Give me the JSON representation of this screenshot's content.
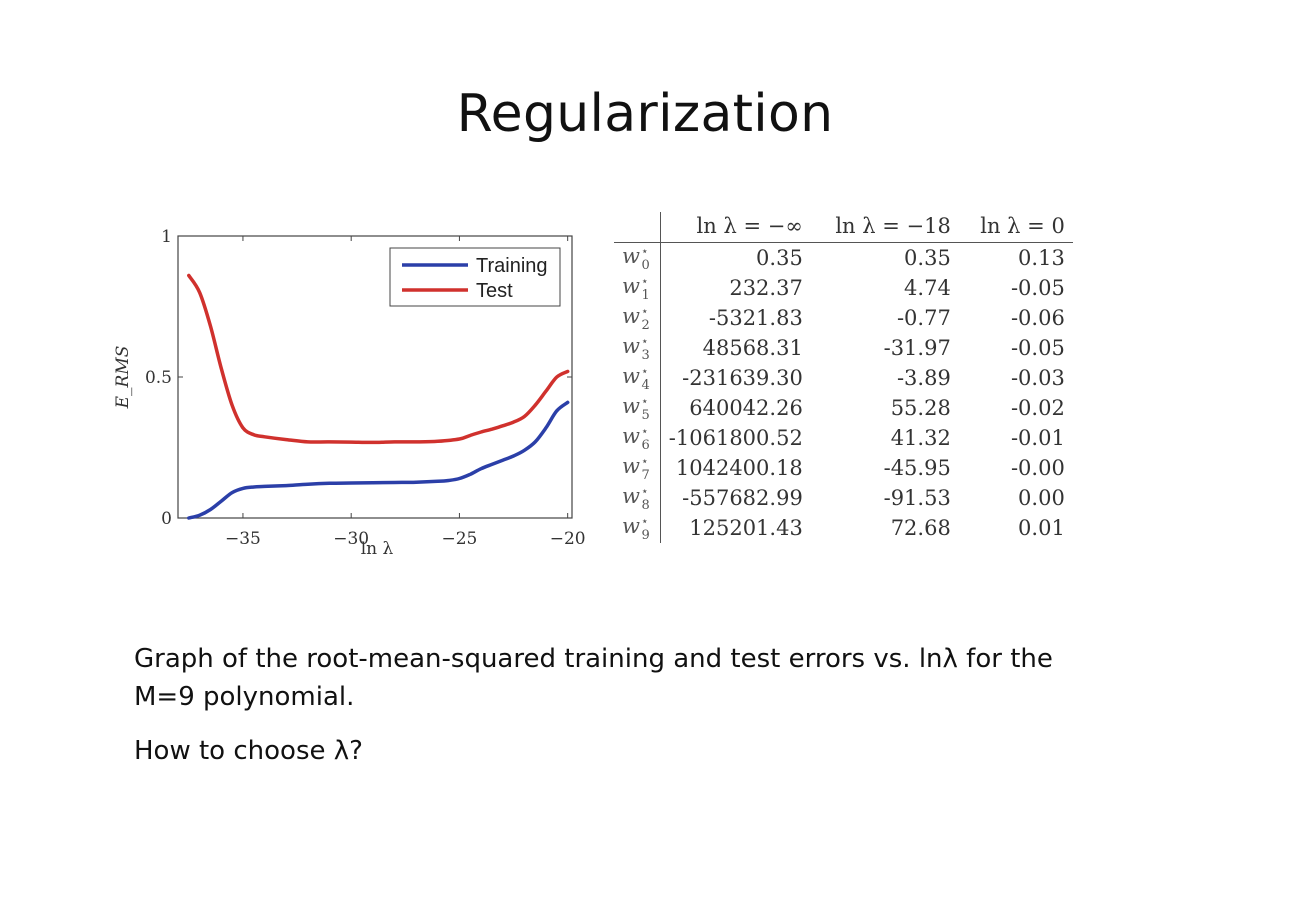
{
  "slide": {
    "title": "Regularization",
    "caption_line1": "Graph of the root-mean-squared training and test errors vs. lnλ for the",
    "caption_line2": "M=9 polynomial.",
    "question": "How to choose λ?"
  },
  "chart_data": {
    "type": "line",
    "xlabel": "ln λ",
    "ylabel": "E_RMS",
    "xlim": [
      -38,
      -19.8
    ],
    "ylim": [
      0,
      1
    ],
    "x_ticks": [
      -35,
      -30,
      -25,
      -20
    ],
    "x_tick_labels": [
      "−35",
      "−30",
      "−25",
      "−20"
    ],
    "y_ticks": [
      0,
      0.5,
      1
    ],
    "y_tick_labels": [
      "0",
      "0.5",
      "1"
    ],
    "grid": false,
    "legend_position": "top-right",
    "series": [
      {
        "name": "Training",
        "color": "#2b3fa8",
        "x": [
          -37.5,
          -37.0,
          -36.5,
          -36.0,
          -35.5,
          -35.0,
          -34.5,
          -34.0,
          -33.0,
          -32.0,
          -31.0,
          -30.0,
          -29.0,
          -28.0,
          -27.0,
          -26.0,
          -25.5,
          -25.0,
          -24.5,
          -24.0,
          -23.5,
          -23.0,
          -22.5,
          -22.0,
          -21.5,
          -21.0,
          -20.5,
          -20.0
        ],
        "y": [
          0.0,
          0.01,
          0.03,
          0.06,
          0.09,
          0.105,
          0.11,
          0.112,
          0.115,
          0.12,
          0.123,
          0.124,
          0.125,
          0.126,
          0.127,
          0.13,
          0.133,
          0.14,
          0.155,
          0.175,
          0.19,
          0.205,
          0.22,
          0.24,
          0.27,
          0.32,
          0.38,
          0.41
        ]
      },
      {
        "name": "Test",
        "color": "#d0312d",
        "x": [
          -37.5,
          -37.0,
          -36.5,
          -36.0,
          -35.5,
          -35.0,
          -34.5,
          -34.0,
          -33.0,
          -32.0,
          -31.0,
          -30.0,
          -29.0,
          -28.0,
          -27.0,
          -26.0,
          -25.0,
          -24.5,
          -24.0,
          -23.5,
          -23.0,
          -22.5,
          -22.0,
          -21.5,
          -21.0,
          -20.5,
          -20.0
        ],
        "y": [
          0.86,
          0.8,
          0.68,
          0.53,
          0.4,
          0.32,
          0.295,
          0.288,
          0.278,
          0.27,
          0.27,
          0.269,
          0.268,
          0.27,
          0.27,
          0.272,
          0.28,
          0.293,
          0.305,
          0.315,
          0.327,
          0.34,
          0.36,
          0.4,
          0.45,
          0.5,
          0.52
        ]
      }
    ]
  },
  "table": {
    "headers": [
      "",
      "ln λ = −∞",
      "ln λ = −18",
      "ln λ = 0"
    ],
    "rows": [
      {
        "w": "w",
        "star": "⋆",
        "sub": "0",
        "v": [
          "0.35",
          "0.35",
          "0.13"
        ]
      },
      {
        "w": "w",
        "star": "⋆",
        "sub": "1",
        "v": [
          "232.37",
          "4.74",
          "-0.05"
        ]
      },
      {
        "w": "w",
        "star": "⋆",
        "sub": "2",
        "v": [
          "-5321.83",
          "-0.77",
          "-0.06"
        ]
      },
      {
        "w": "w",
        "star": "⋆",
        "sub": "3",
        "v": [
          "48568.31",
          "-31.97",
          "-0.05"
        ]
      },
      {
        "w": "w",
        "star": "⋆",
        "sub": "4",
        "v": [
          "-231639.30",
          "-3.89",
          "-0.03"
        ]
      },
      {
        "w": "w",
        "star": "⋆",
        "sub": "5",
        "v": [
          "640042.26",
          "55.28",
          "-0.02"
        ]
      },
      {
        "w": "w",
        "star": "⋆",
        "sub": "6",
        "v": [
          "-1061800.52",
          "41.32",
          "-0.01"
        ]
      },
      {
        "w": "w",
        "star": "⋆",
        "sub": "7",
        "v": [
          "1042400.18",
          "-45.95",
          "-0.00"
        ]
      },
      {
        "w": "w",
        "star": "⋆",
        "sub": "8",
        "v": [
          "-557682.99",
          "-91.53",
          "0.00"
        ]
      },
      {
        "w": "w",
        "star": "⋆",
        "sub": "9",
        "v": [
          "125201.43",
          "72.68",
          "0.01"
        ]
      }
    ]
  }
}
